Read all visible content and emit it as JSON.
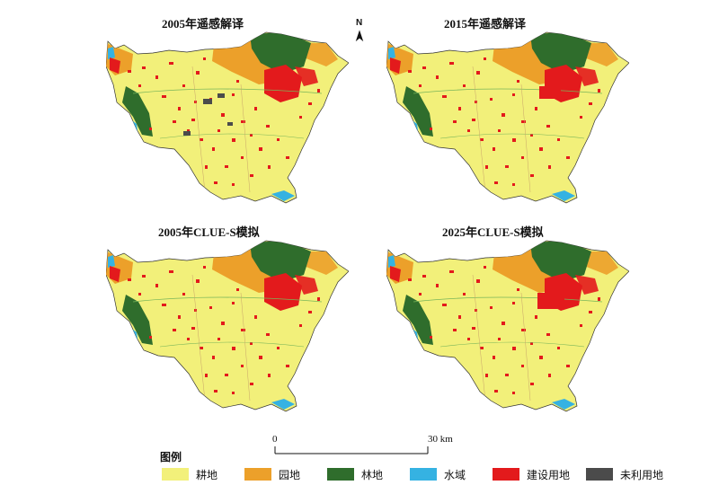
{
  "panels": [
    {
      "title": "2005年遥感解译"
    },
    {
      "title": "2015年遥感解译"
    },
    {
      "title": "2005年CLUE-S模拟"
    },
    {
      "title": "2025年CLUE-S模拟"
    }
  ],
  "north_arrow": {
    "label": "N"
  },
  "scale_bar": {
    "start_label": "0",
    "end_label": "30 km"
  },
  "legend": {
    "title": "图例",
    "items": [
      {
        "label": "耕地",
        "color": "#f2f07a"
      },
      {
        "label": "园地",
        "color": "#eca02a"
      },
      {
        "label": "林地",
        "color": "#2f6d2c"
      },
      {
        "label": "水域",
        "color": "#35b2e2"
      },
      {
        "label": "建设用地",
        "color": "#e31a1c"
      },
      {
        "label": "未利用地",
        "color": "#4b4b4b"
      }
    ]
  }
}
